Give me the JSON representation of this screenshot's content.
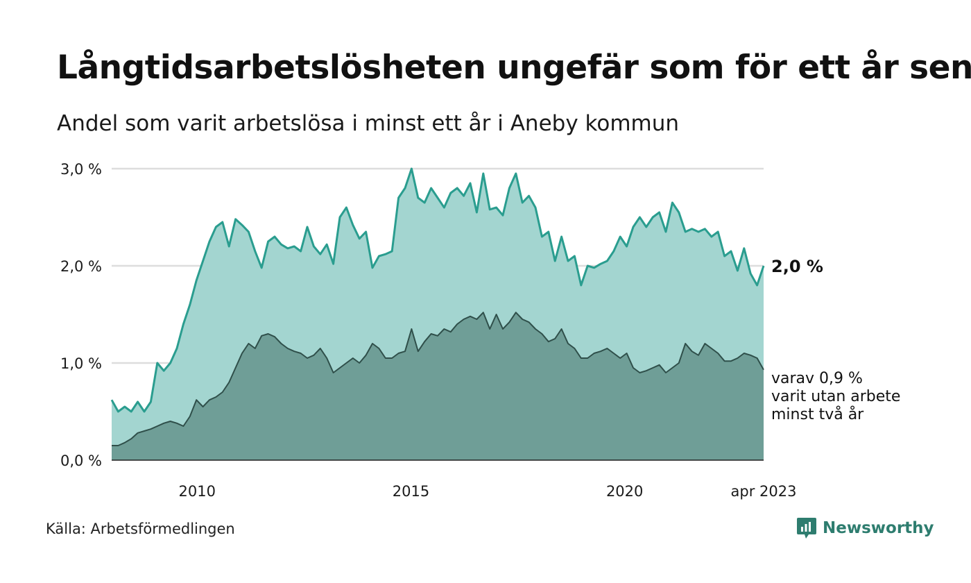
{
  "title": "Långtidsarbetslösheten ungefär som för ett år sen",
  "subtitle": "Andel som varit arbetslösa i minst ett år i Aneby kommun",
  "source": "Källa: Arbetsförmedlingen",
  "brand": {
    "name": "Newsworthy",
    "icon": "newsworthy-logo-icon"
  },
  "colors": {
    "series1_line": "#2a9d8f",
    "series1_fill": "#a3d5d0",
    "series2_line": "#2f4f4a",
    "series2_fill": "#6f9e97",
    "grid": "#dddddd",
    "brand": "#2e7d6f"
  },
  "chart_data": {
    "type": "area",
    "x_start": "2008-01",
    "x_end": "2023-04",
    "xticks": [
      "2010",
      "2015",
      "2020",
      "apr 2023"
    ],
    "yticks": [
      "0,0 %",
      "1,0 %",
      "2,0 %",
      "3,0 %"
    ],
    "ylim": [
      0,
      3
    ],
    "grid": true,
    "end_label": "2,0 %",
    "annotation": [
      "varav 0,9 %",
      "varit utan arbete",
      "minst två år"
    ],
    "series": [
      {
        "values": [
          0.62,
          0.5,
          0.55,
          0.5,
          0.6,
          0.5,
          0.6,
          1.0,
          0.92,
          1.0,
          1.15,
          1.4,
          1.6,
          1.85,
          2.05,
          2.25,
          2.4,
          2.45,
          2.2,
          2.48,
          2.42,
          2.35,
          2.15,
          1.98,
          2.25,
          2.3,
          2.22,
          2.18,
          2.2,
          2.15,
          2.4,
          2.2,
          2.12,
          2.22,
          2.02,
          2.5,
          2.6,
          2.42,
          2.28,
          2.35,
          1.98,
          2.1,
          2.12,
          2.15,
          2.7,
          2.8,
          3.0,
          2.7,
          2.65,
          2.8,
          2.7,
          2.6,
          2.75,
          2.8,
          2.72,
          2.85,
          2.55,
          2.95,
          2.58,
          2.6,
          2.52,
          2.8,
          2.95,
          2.65,
          2.72,
          2.6,
          2.3,
          2.35,
          2.05,
          2.3,
          2.05,
          2.1,
          1.8,
          2.0,
          1.98,
          2.02,
          2.05,
          2.15,
          2.3,
          2.2,
          2.4,
          2.5,
          2.4,
          2.5,
          2.55,
          2.35,
          2.65,
          2.55,
          2.35,
          2.38,
          2.35,
          2.38,
          2.3,
          2.35,
          2.1,
          2.15,
          1.95,
          2.18,
          1.92,
          1.8,
          2.0
        ]
      },
      {
        "values": [
          0.15,
          0.15,
          0.18,
          0.22,
          0.28,
          0.3,
          0.32,
          0.35,
          0.38,
          0.4,
          0.38,
          0.35,
          0.45,
          0.62,
          0.55,
          0.62,
          0.65,
          0.7,
          0.8,
          0.95,
          1.1,
          1.2,
          1.15,
          1.28,
          1.3,
          1.27,
          1.2,
          1.15,
          1.12,
          1.1,
          1.05,
          1.08,
          1.15,
          1.05,
          0.9,
          0.95,
          1.0,
          1.05,
          1.0,
          1.08,
          1.2,
          1.15,
          1.05,
          1.05,
          1.1,
          1.12,
          1.35,
          1.12,
          1.22,
          1.3,
          1.28,
          1.35,
          1.32,
          1.4,
          1.45,
          1.48,
          1.45,
          1.52,
          1.35,
          1.5,
          1.35,
          1.42,
          1.52,
          1.45,
          1.42,
          1.35,
          1.3,
          1.22,
          1.25,
          1.35,
          1.2,
          1.15,
          1.05,
          1.05,
          1.1,
          1.12,
          1.15,
          1.1,
          1.05,
          1.1,
          0.95,
          0.9,
          0.92,
          0.95,
          0.98,
          0.9,
          0.95,
          1.0,
          1.2,
          1.12,
          1.08,
          1.2,
          1.15,
          1.1,
          1.02,
          1.02,
          1.05,
          1.1,
          1.08,
          1.05,
          0.93
        ]
      }
    ]
  }
}
